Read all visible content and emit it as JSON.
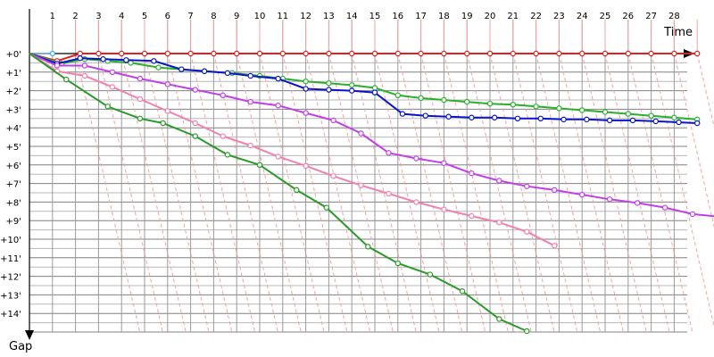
{
  "chart_data": {
    "type": "line",
    "xlabel": "Time",
    "ylabel": "Gap",
    "x_ticks": [
      1,
      2,
      3,
      4,
      5,
      6,
      7,
      8,
      9,
      10,
      11,
      12,
      13,
      14,
      15,
      16,
      17,
      18,
      19,
      20,
      21,
      22,
      23,
      24,
      25,
      26,
      27,
      28
    ],
    "y_ticks": [
      "+0'",
      "+1'",
      "+2'",
      "+3'",
      "+4'",
      "+5'",
      "+6'",
      "+7'",
      "+8'",
      "+9'",
      "+10'",
      "+11'",
      "+12'",
      "+13'",
      "+14'"
    ],
    "xlim": [
      0,
      29.5
    ],
    "ylim_minutes": [
      0,
      15
    ],
    "grid": true,
    "series": [
      {
        "color": "#e02020",
        "points": [
          [
            0,
            0
          ],
          [
            1.2,
            0.4
          ],
          [
            2.2,
            0
          ],
          [
            3,
            0
          ],
          [
            4,
            0
          ],
          [
            5,
            0
          ],
          [
            6,
            0
          ],
          [
            7,
            0
          ],
          [
            8,
            0
          ],
          [
            9,
            0
          ],
          [
            10,
            0
          ],
          [
            11,
            0
          ],
          [
            12,
            0
          ],
          [
            13,
            0
          ],
          [
            14,
            0
          ],
          [
            15,
            0
          ],
          [
            16,
            0
          ],
          [
            17,
            0
          ],
          [
            18,
            0
          ],
          [
            19,
            0
          ],
          [
            20,
            0
          ],
          [
            21,
            0
          ],
          [
            22,
            0
          ],
          [
            23,
            0
          ],
          [
            24,
            0
          ],
          [
            25,
            0
          ],
          [
            26,
            0
          ],
          [
            27,
            0
          ],
          [
            28,
            0
          ],
          [
            29,
            0
          ]
        ]
      },
      {
        "color": "#2ab02a",
        "points": [
          [
            0,
            0
          ],
          [
            1.4,
            0.55
          ],
          [
            2.4,
            0.3
          ],
          [
            3.4,
            0.4
          ],
          [
            4.4,
            0.5
          ],
          [
            5.6,
            0.75
          ],
          [
            6.6,
            0.85
          ],
          [
            7.6,
            0.95
          ],
          [
            8.8,
            1.05
          ],
          [
            10,
            1.2
          ],
          [
            11,
            1.35
          ],
          [
            12,
            1.5
          ],
          [
            13,
            1.6
          ],
          [
            14,
            1.7
          ],
          [
            15,
            1.85
          ],
          [
            16,
            2.25
          ],
          [
            17,
            2.4
          ],
          [
            18,
            2.5
          ],
          [
            19,
            2.6
          ],
          [
            20,
            2.7
          ],
          [
            21,
            2.75
          ],
          [
            22,
            2.85
          ],
          [
            23,
            2.95
          ],
          [
            24,
            3.05
          ],
          [
            25,
            3.15
          ],
          [
            26,
            3.25
          ],
          [
            27,
            3.35
          ],
          [
            28,
            3.45
          ],
          [
            29,
            3.55
          ]
        ]
      },
      {
        "color": "#0a14cc",
        "points": [
          [
            0,
            0
          ],
          [
            1.2,
            0.55
          ],
          [
            2.2,
            0.25
          ],
          [
            3.2,
            0.3
          ],
          [
            4.2,
            0.35
          ],
          [
            5.4,
            0.4
          ],
          [
            6.6,
            0.85
          ],
          [
            7.6,
            0.95
          ],
          [
            8.6,
            1.05
          ],
          [
            9.6,
            1.2
          ],
          [
            10.8,
            1.35
          ],
          [
            12,
            1.9
          ],
          [
            13,
            1.95
          ],
          [
            14,
            2.0
          ],
          [
            15,
            2.1
          ],
          [
            16.2,
            3.25
          ],
          [
            17.2,
            3.35
          ],
          [
            18.2,
            3.4
          ],
          [
            19.2,
            3.45
          ],
          [
            20.2,
            3.45
          ],
          [
            21.2,
            3.5
          ],
          [
            22.2,
            3.5
          ],
          [
            23.2,
            3.55
          ],
          [
            24.2,
            3.55
          ],
          [
            25.2,
            3.6
          ],
          [
            26.2,
            3.6
          ],
          [
            27.2,
            3.65
          ],
          [
            28.2,
            3.7
          ],
          [
            29,
            3.75
          ]
        ]
      },
      {
        "color": "#c040e8",
        "points": [
          [
            0,
            0
          ],
          [
            1.2,
            0.65
          ],
          [
            2.4,
            0.65
          ],
          [
            3.6,
            1.0
          ],
          [
            4.8,
            1.35
          ],
          [
            6,
            1.65
          ],
          [
            7.2,
            1.95
          ],
          [
            8.4,
            2.25
          ],
          [
            9.6,
            2.6
          ],
          [
            10.8,
            2.8
          ],
          [
            12,
            3.2
          ],
          [
            13.2,
            3.6
          ],
          [
            14.4,
            4.3
          ],
          [
            15.6,
            5.35
          ],
          [
            16.8,
            5.65
          ],
          [
            18,
            5.9
          ],
          [
            19.2,
            6.45
          ],
          [
            20.4,
            6.85
          ],
          [
            21.6,
            7.15
          ],
          [
            22.8,
            7.35
          ],
          [
            24,
            7.6
          ],
          [
            25.2,
            7.85
          ],
          [
            26.4,
            8.05
          ],
          [
            27.6,
            8.3
          ],
          [
            28.8,
            8.65
          ],
          [
            30,
            8.8
          ]
        ]
      },
      {
        "color": "#f080b0",
        "points": [
          [
            0,
            0
          ],
          [
            1.2,
            0.95
          ],
          [
            2.4,
            1.2
          ],
          [
            3.6,
            1.8
          ],
          [
            4.8,
            2.45
          ],
          [
            6,
            3.1
          ],
          [
            7.2,
            3.75
          ],
          [
            8.4,
            4.45
          ],
          [
            9.6,
            4.95
          ],
          [
            10.8,
            5.55
          ],
          [
            12,
            6.05
          ],
          [
            13.2,
            6.6
          ],
          [
            14.4,
            7.1
          ],
          [
            15.6,
            7.55
          ],
          [
            16.8,
            8.0
          ],
          [
            18,
            8.4
          ],
          [
            19.2,
            8.75
          ],
          [
            20.4,
            9.1
          ],
          [
            21.6,
            9.6
          ],
          [
            22.8,
            10.35
          ]
        ]
      },
      {
        "color": "#2a9a2a",
        "points": [
          [
            0,
            0
          ],
          [
            1.6,
            1.4
          ],
          [
            3.4,
            2.85
          ],
          [
            4.8,
            3.5
          ],
          [
            5.8,
            3.75
          ],
          [
            7.2,
            4.45
          ],
          [
            8.6,
            5.45
          ],
          [
            10,
            6.0
          ],
          [
            11.6,
            7.35
          ],
          [
            12.9,
            8.3
          ],
          [
            14.7,
            10.4
          ],
          [
            16,
            11.3
          ],
          [
            17.4,
            11.9
          ],
          [
            18.8,
            12.8
          ],
          [
            20.4,
            14.3
          ],
          [
            21.6,
            14.95
          ]
        ]
      }
    ]
  }
}
